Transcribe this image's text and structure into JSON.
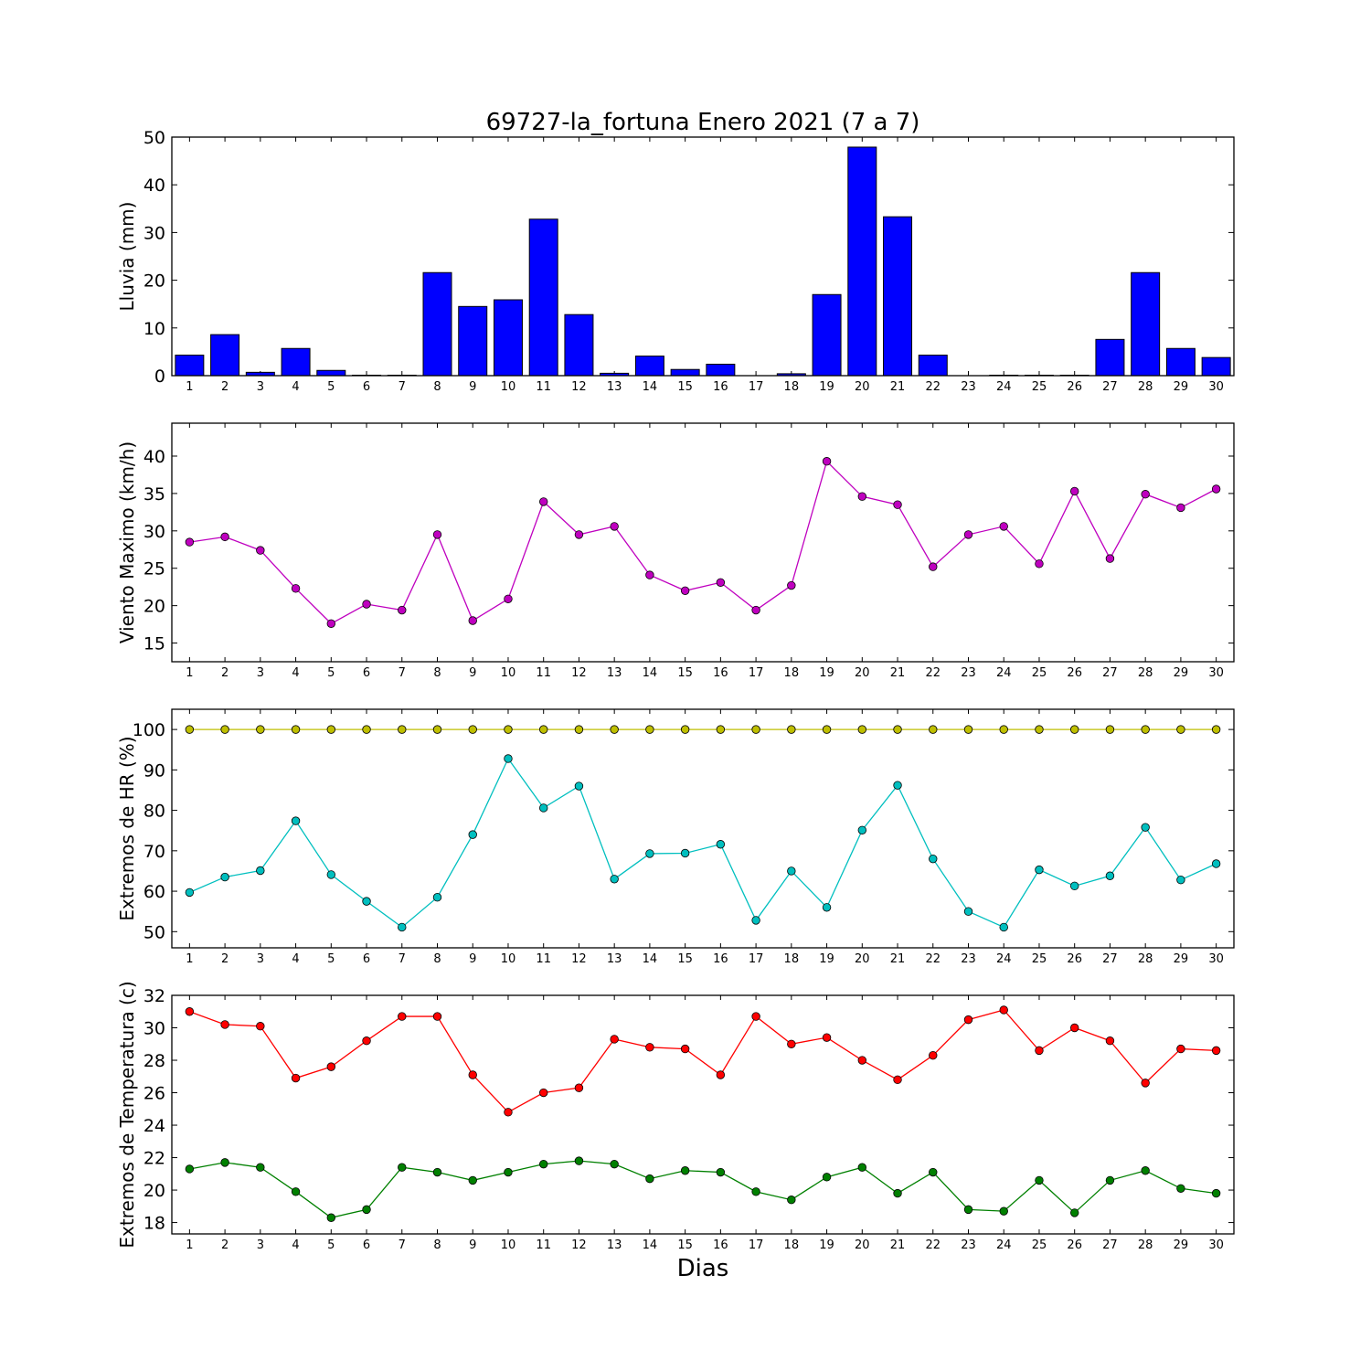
{
  "title": "69727-la_fortuna Enero 2021  (7 a 7)",
  "xlabel": "Dias",
  "chart_data": [
    {
      "type": "bar",
      "ylabel": "Lluvia (mm)",
      "ylim": [
        0,
        50
      ],
      "yticks": [
        0,
        10,
        20,
        30,
        40,
        50
      ],
      "categories": [
        "1",
        "2",
        "3",
        "4",
        "5",
        "6",
        "7",
        "8",
        "9",
        "10",
        "11",
        "12",
        "13",
        "14",
        "15",
        "16",
        "17",
        "18",
        "19",
        "20",
        "21",
        "22",
        "23",
        "24",
        "25",
        "26",
        "27",
        "28",
        "29",
        "30"
      ],
      "series": [
        {
          "color": "#0000ff",
          "values": [
            4.3,
            8.6,
            0.7,
            5.7,
            1.1,
            0.1,
            0.1,
            21.6,
            14.5,
            15.9,
            32.8,
            12.8,
            0.5,
            4.1,
            1.3,
            2.4,
            0.0,
            0.4,
            17.0,
            47.9,
            33.3,
            4.3,
            0.0,
            0.1,
            0.1,
            0.1,
            7.6,
            21.6,
            5.7,
            3.8
          ]
        }
      ]
    },
    {
      "type": "line",
      "ylabel": "Viento Maximo (km/h)",
      "ylim": [
        12.5,
        44.4
      ],
      "yticks": [
        15,
        20,
        25,
        30,
        35,
        40
      ],
      "categories": [
        "1",
        "2",
        "3",
        "4",
        "5",
        "6",
        "7",
        "8",
        "9",
        "10",
        "11",
        "12",
        "13",
        "14",
        "15",
        "16",
        "17",
        "18",
        "19",
        "20",
        "21",
        "22",
        "23",
        "24",
        "25",
        "26",
        "27",
        "28",
        "29",
        "30"
      ],
      "series": [
        {
          "color": "#bf00bf",
          "values": [
            28.5,
            29.2,
            27.4,
            22.3,
            17.6,
            20.2,
            19.4,
            29.5,
            18.0,
            20.9,
            33.9,
            29.5,
            30.6,
            24.1,
            22.0,
            23.1,
            19.4,
            22.7,
            39.3,
            34.6,
            33.5,
            25.2,
            29.5,
            30.6,
            25.6,
            35.3,
            26.3,
            34.9,
            33.1,
            35.6
          ]
        }
      ]
    },
    {
      "type": "line",
      "ylabel": "Extremos de HR (%)",
      "ylim": [
        46,
        105
      ],
      "yticks": [
        50,
        60,
        70,
        80,
        90,
        100
      ],
      "categories": [
        "1",
        "2",
        "3",
        "4",
        "5",
        "6",
        "7",
        "8",
        "9",
        "10",
        "11",
        "12",
        "13",
        "14",
        "15",
        "16",
        "17",
        "18",
        "19",
        "20",
        "21",
        "22",
        "23",
        "24",
        "25",
        "26",
        "27",
        "28",
        "29",
        "30"
      ],
      "series": [
        {
          "color": "#bfbf00",
          "values": [
            100,
            100,
            100,
            100,
            100,
            100,
            100,
            100,
            100,
            100,
            100,
            100,
            100,
            100,
            100,
            100,
            100,
            100,
            100,
            100,
            100,
            100,
            100,
            100,
            100,
            100,
            100,
            100,
            100,
            100
          ]
        },
        {
          "color": "#00bfbf",
          "values": [
            59.7,
            63.5,
            65.1,
            77.4,
            64.1,
            57.5,
            51.1,
            58.5,
            74.0,
            92.8,
            80.6,
            86.0,
            63.0,
            69.3,
            69.4,
            71.6,
            52.8,
            65.0,
            56.0,
            75.1,
            86.2,
            68.0,
            55.0,
            51.1,
            65.3,
            61.3,
            63.8,
            75.8,
            62.8,
            66.8
          ]
        }
      ]
    },
    {
      "type": "line",
      "ylabel": "Extremos de Temperatura (c)",
      "ylim": [
        17.3,
        32.0
      ],
      "yticks": [
        18,
        20,
        22,
        24,
        26,
        28,
        30,
        32
      ],
      "categories": [
        "1",
        "2",
        "3",
        "4",
        "5",
        "6",
        "7",
        "8",
        "9",
        "10",
        "11",
        "12",
        "13",
        "14",
        "15",
        "16",
        "17",
        "18",
        "19",
        "20",
        "21",
        "22",
        "23",
        "24",
        "25",
        "26",
        "27",
        "28",
        "29",
        "30"
      ],
      "series": [
        {
          "color": "#ff0000",
          "values": [
            31.0,
            30.2,
            30.1,
            26.9,
            27.6,
            29.2,
            30.7,
            30.7,
            27.1,
            24.8,
            26.0,
            26.3,
            29.3,
            28.8,
            28.7,
            27.1,
            30.7,
            29.0,
            29.4,
            28.0,
            26.8,
            28.3,
            30.5,
            31.1,
            28.6,
            30.0,
            29.2,
            26.6,
            28.7,
            28.6
          ]
        },
        {
          "color": "#008000",
          "values": [
            21.3,
            21.7,
            21.4,
            19.9,
            18.3,
            18.8,
            21.4,
            21.1,
            20.6,
            21.1,
            21.6,
            21.8,
            21.6,
            20.7,
            21.2,
            21.1,
            19.9,
            19.4,
            20.8,
            21.4,
            19.8,
            21.1,
            18.8,
            18.7,
            20.6,
            18.6,
            20.6,
            21.2,
            20.1,
            19.8
          ]
        }
      ]
    }
  ]
}
